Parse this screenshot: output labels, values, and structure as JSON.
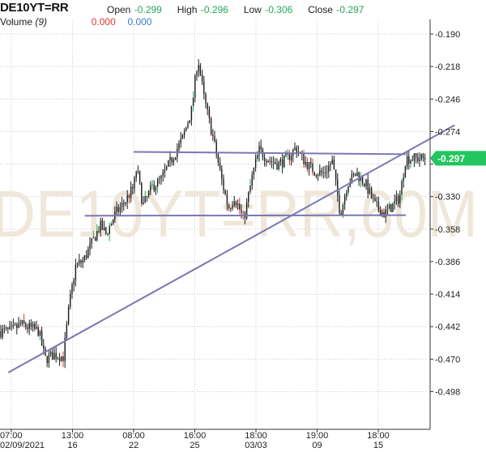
{
  "header": {
    "symbol": "DE10YT=RR",
    "open_label": "Open",
    "open_value": "-0.299",
    "high_label": "High",
    "high_value": "-0.296",
    "low_label": "Low",
    "low_value": "-0.306",
    "close_label": "Close",
    "close_value": "-0.297",
    "volume_label": "Volume",
    "volume_period": "(9)",
    "volume_value_1": "0.000",
    "volume_value_2": "0.000"
  },
  "watermark": "DE10YT=RR,60M",
  "colors": {
    "up": "#26a65b",
    "down": "#e53935",
    "candle_body": "#1b1b1b",
    "trendline": "#7b78b3",
    "last_price_bg": "#22c55e",
    "grid": "#cccccc"
  },
  "chart_data": {
    "type": "candlestick",
    "title": "",
    "xlabel": "",
    "ylabel": "",
    "ylim": [
      -0.512,
      -0.176
    ],
    "y_ticks": [
      -0.19,
      -0.218,
      -0.246,
      -0.274,
      -0.302,
      -0.33,
      -0.358,
      -0.386,
      -0.414,
      -0.442,
      -0.47,
      -0.498
    ],
    "y_tick_labels": [
      "-0.190",
      "-0.218",
      "-0.246",
      "-0.274",
      "",
      "-0.330",
      "-0.358",
      "-0.386",
      "-0.414",
      "-0.442",
      "-0.470",
      "-0.498"
    ],
    "x_ticks": [
      {
        "time": "07:00",
        "date": "02/09/2021"
      },
      {
        "time": "13:00",
        "date": "16"
      },
      {
        "time": "08:00",
        "date": "22"
      },
      {
        "time": "16:00",
        "date": "25"
      },
      {
        "time": "18:00",
        "date": "03/03"
      },
      {
        "time": "19:00",
        "date": "09"
      },
      {
        "time": "18:00",
        "date": "15"
      }
    ],
    "last_price": "-0.297",
    "last_price_value": -0.297,
    "horizontal_lines": [
      {
        "from_tick": 2,
        "to_tick": 6.45,
        "y_start": -0.2915,
        "y_end": -0.2935
      },
      {
        "from_tick": 1.2,
        "to_tick": 6.45,
        "y_start": -0.3465,
        "y_end": -0.346
      }
    ],
    "trend_line": {
      "from_tick": -0.05,
      "to_tick": 7.25,
      "y_start": -0.4815,
      "y_end": -0.2684
    },
    "price_path": [
      [
        0.0,
        -0.446
      ],
      [
        0.15,
        -0.44
      ],
      [
        0.3,
        -0.443
      ],
      [
        0.45,
        -0.446
      ],
      [
        0.55,
        -0.47
      ],
      [
        0.7,
        -0.466
      ],
      [
        0.85,
        -0.468
      ],
      [
        0.95,
        -0.422
      ],
      [
        1.05,
        -0.39
      ],
      [
        1.18,
        -0.385
      ],
      [
        1.3,
        -0.372
      ],
      [
        1.45,
        -0.355
      ],
      [
        1.55,
        -0.362
      ],
      [
        1.7,
        -0.345
      ],
      [
        1.85,
        -0.335
      ],
      [
        2.0,
        -0.322
      ],
      [
        2.05,
        -0.305
      ],
      [
        2.15,
        -0.338
      ],
      [
        2.3,
        -0.322
      ],
      [
        2.45,
        -0.315
      ],
      [
        2.6,
        -0.3
      ],
      [
        2.8,
        -0.28
      ],
      [
        2.95,
        -0.255
      ],
      [
        3.05,
        -0.21
      ],
      [
        3.15,
        -0.245
      ],
      [
        3.3,
        -0.28
      ],
      [
        3.45,
        -0.318
      ],
      [
        3.55,
        -0.34
      ],
      [
        3.65,
        -0.33
      ],
      [
        3.8,
        -0.35
      ],
      [
        3.95,
        -0.31
      ],
      [
        4.05,
        -0.29
      ],
      [
        4.2,
        -0.298
      ],
      [
        4.35,
        -0.302
      ],
      [
        4.5,
        -0.298
      ],
      [
        4.65,
        -0.288
      ],
      [
        4.8,
        -0.3
      ],
      [
        4.95,
        -0.308
      ],
      [
        5.1,
        -0.31
      ],
      [
        5.25,
        -0.3
      ],
      [
        5.38,
        -0.345
      ],
      [
        5.5,
        -0.318
      ],
      [
        5.65,
        -0.31
      ],
      [
        5.8,
        -0.32
      ],
      [
        5.95,
        -0.338
      ],
      [
        6.1,
        -0.345
      ],
      [
        6.25,
        -0.337
      ],
      [
        6.35,
        -0.33
      ],
      [
        6.45,
        -0.297
      ]
    ]
  }
}
